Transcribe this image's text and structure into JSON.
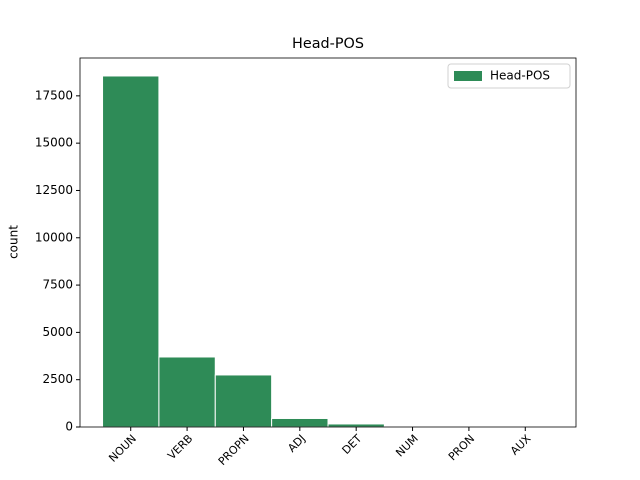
{
  "chart_data": {
    "type": "bar",
    "title": "Head-POS",
    "y_label": "count",
    "categories": [
      "NOUN",
      "VERB",
      "PROPN",
      "ADJ",
      "DET",
      "NUM",
      "PRON",
      "AUX"
    ],
    "series": [
      {
        "name": "Head-POS",
        "color": "#2e8b57",
        "values": [
          18550,
          3700,
          2750,
          450,
          160,
          20,
          10,
          5
        ]
      }
    ],
    "ylim": [
      0,
      19500
    ],
    "yticks": [
      0,
      2500,
      5000,
      7500,
      10000,
      12500,
      15000,
      17500
    ],
    "legend": "upper right"
  }
}
